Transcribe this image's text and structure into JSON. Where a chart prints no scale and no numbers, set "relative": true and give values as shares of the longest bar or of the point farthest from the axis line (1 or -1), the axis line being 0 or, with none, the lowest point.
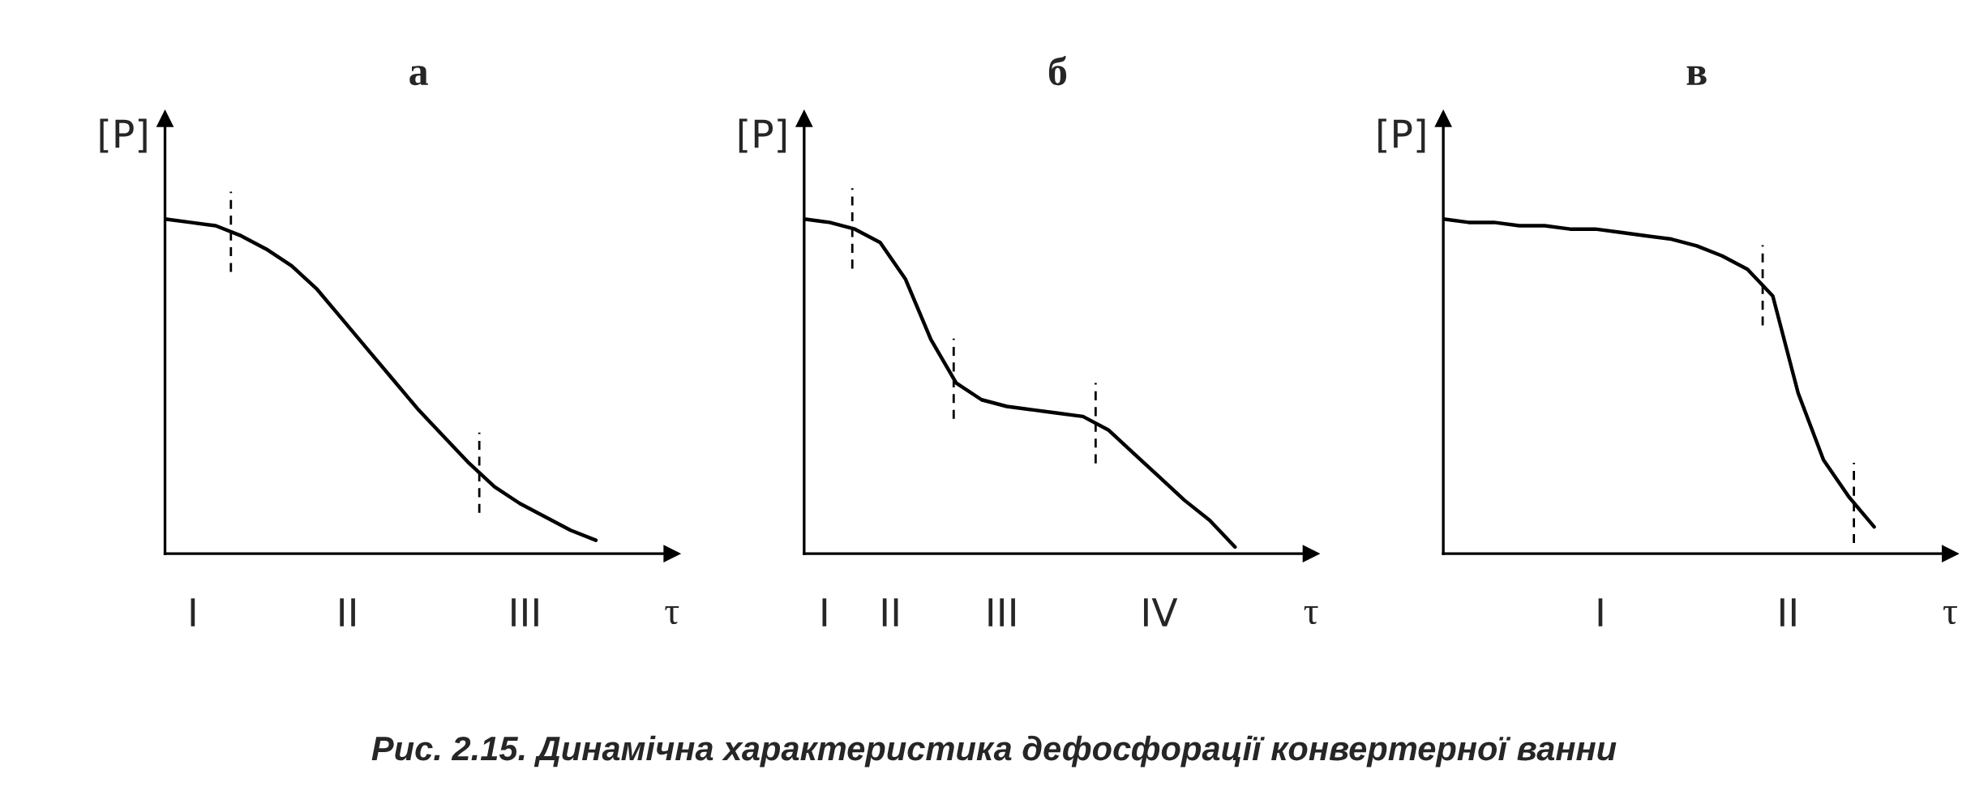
{
  "chart_data": [
    {
      "type": "line",
      "title": "а",
      "ylabel": "[P]",
      "xlabel": "τ",
      "relative": true,
      "categories": [
        null,
        null,
        null,
        null,
        null,
        null,
        null,
        null,
        null,
        null,
        null,
        null,
        null,
        null,
        null,
        null,
        null,
        null
      ],
      "series": [
        {
          "color": "#000000",
          "values": [
            1.0,
            0.99,
            0.98,
            0.95,
            0.91,
            0.86,
            0.79,
            0.7,
            0.61,
            0.52,
            0.43,
            0.35,
            0.27,
            0.2,
            0.15,
            0.11,
            0.07,
            0.04
          ]
        }
      ],
      "annotations": [
        "I",
        "II",
        "III"
      ]
    },
    {
      "type": "line",
      "title": "б",
      "ylabel": "[P]",
      "xlabel": "τ",
      "relative": true,
      "categories": [
        null,
        null,
        null,
        null,
        null,
        null,
        null,
        null,
        null,
        null,
        null,
        null,
        null,
        null,
        null,
        null,
        null,
        null
      ],
      "series": [
        {
          "color": "#000000",
          "values": [
            1.0,
            0.99,
            0.97,
            0.93,
            0.82,
            0.64,
            0.51,
            0.46,
            0.44,
            0.43,
            0.42,
            0.41,
            0.37,
            0.3,
            0.23,
            0.16,
            0.1,
            0.02
          ]
        }
      ],
      "annotations": [
        "I",
        "II",
        "III",
        "IV",
        "Рис. 2.15. Динамічна характеристика дефосфорації конвертерної ванни"
      ]
    },
    {
      "type": "line",
      "title": "в",
      "ylabel": "[P]",
      "xlabel": "τ",
      "relative": true,
      "categories": [
        null,
        null,
        null,
        null,
        null,
        null,
        null,
        null,
        null,
        null,
        null,
        null,
        null,
        null,
        null,
        null,
        null,
        null
      ],
      "series": [
        {
          "color": "#000000",
          "values": [
            1.0,
            0.99,
            0.99,
            0.98,
            0.98,
            0.97,
            0.97,
            0.96,
            0.95,
            0.94,
            0.92,
            0.89,
            0.85,
            0.77,
            0.48,
            0.28,
            0.17,
            0.08
          ]
        }
      ],
      "annotations": [
        "I",
        "II"
      ]
    }
  ]
}
